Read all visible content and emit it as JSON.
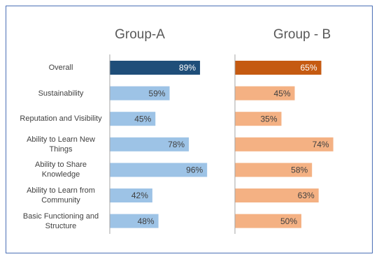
{
  "chart_data": {
    "type": "bar",
    "categories": [
      "Overall",
      "Sustainability",
      "Reputation and Visibility",
      "Ability to Learn New Things",
      "Ability to Share Knowledge",
      "Ability to Learn from Community",
      "Basic Functioning and Structure"
    ],
    "series": [
      {
        "name": "Group-A",
        "colors": [
          "#1f4e79",
          "#9dc3e6",
          "#9dc3e6",
          "#9dc3e6",
          "#9dc3e6",
          "#9dc3e6",
          "#9dc3e6"
        ],
        "values": [
          89,
          59,
          45,
          78,
          96,
          42,
          48
        ],
        "value_labels": [
          "89%",
          "59%",
          "45%",
          "78%",
          "96%",
          "42%",
          "48%"
        ]
      },
      {
        "name": "Group - B",
        "colors": [
          "#c55a11",
          "#f4b183",
          "#f4b183",
          "#f4b183",
          "#f4b183",
          "#f4b183",
          "#f4b183"
        ],
        "values": [
          65,
          45,
          35,
          74,
          58,
          63,
          50
        ],
        "value_labels": [
          "65%",
          "45%",
          "35%",
          "74%",
          "58%",
          "63%",
          "50%"
        ]
      }
    ]
  }
}
